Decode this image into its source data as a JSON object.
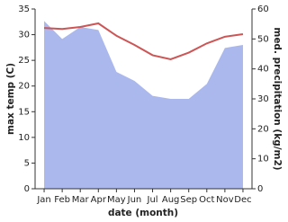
{
  "chart_data": {
    "type": "line-area",
    "xlabel": "date (month)",
    "ylabel": "max temp (C)",
    "y2label": "med. precipitation (kg/m2)",
    "categories": [
      "Jan",
      "Feb",
      "Mar",
      "Apr",
      "May",
      "Jun",
      "Jul",
      "Aug",
      "Sep",
      "Oct",
      "Nov",
      "Dec"
    ],
    "series": [
      {
        "color": "#aab8ee",
        "axis": "y2",
        "values": [
          56,
          50,
          54,
          53,
          39,
          36,
          31,
          30,
          30,
          35,
          47,
          48
        ]
      },
      {
        "color": "#cd5555",
        "values": [
          31.3,
          31.1,
          31.5,
          32.2,
          29.8,
          28,
          26,
          25.2,
          26.5,
          28.3,
          29.6,
          30.1
        ]
      }
    ],
    "ylim": [
      0,
      35
    ],
    "yticks": [
      0,
      5,
      10,
      15,
      20,
      25,
      30,
      35
    ],
    "y2lim": [
      0,
      60
    ],
    "y2ticks": [
      0,
      10,
      20,
      30,
      40,
      50,
      60
    ]
  }
}
